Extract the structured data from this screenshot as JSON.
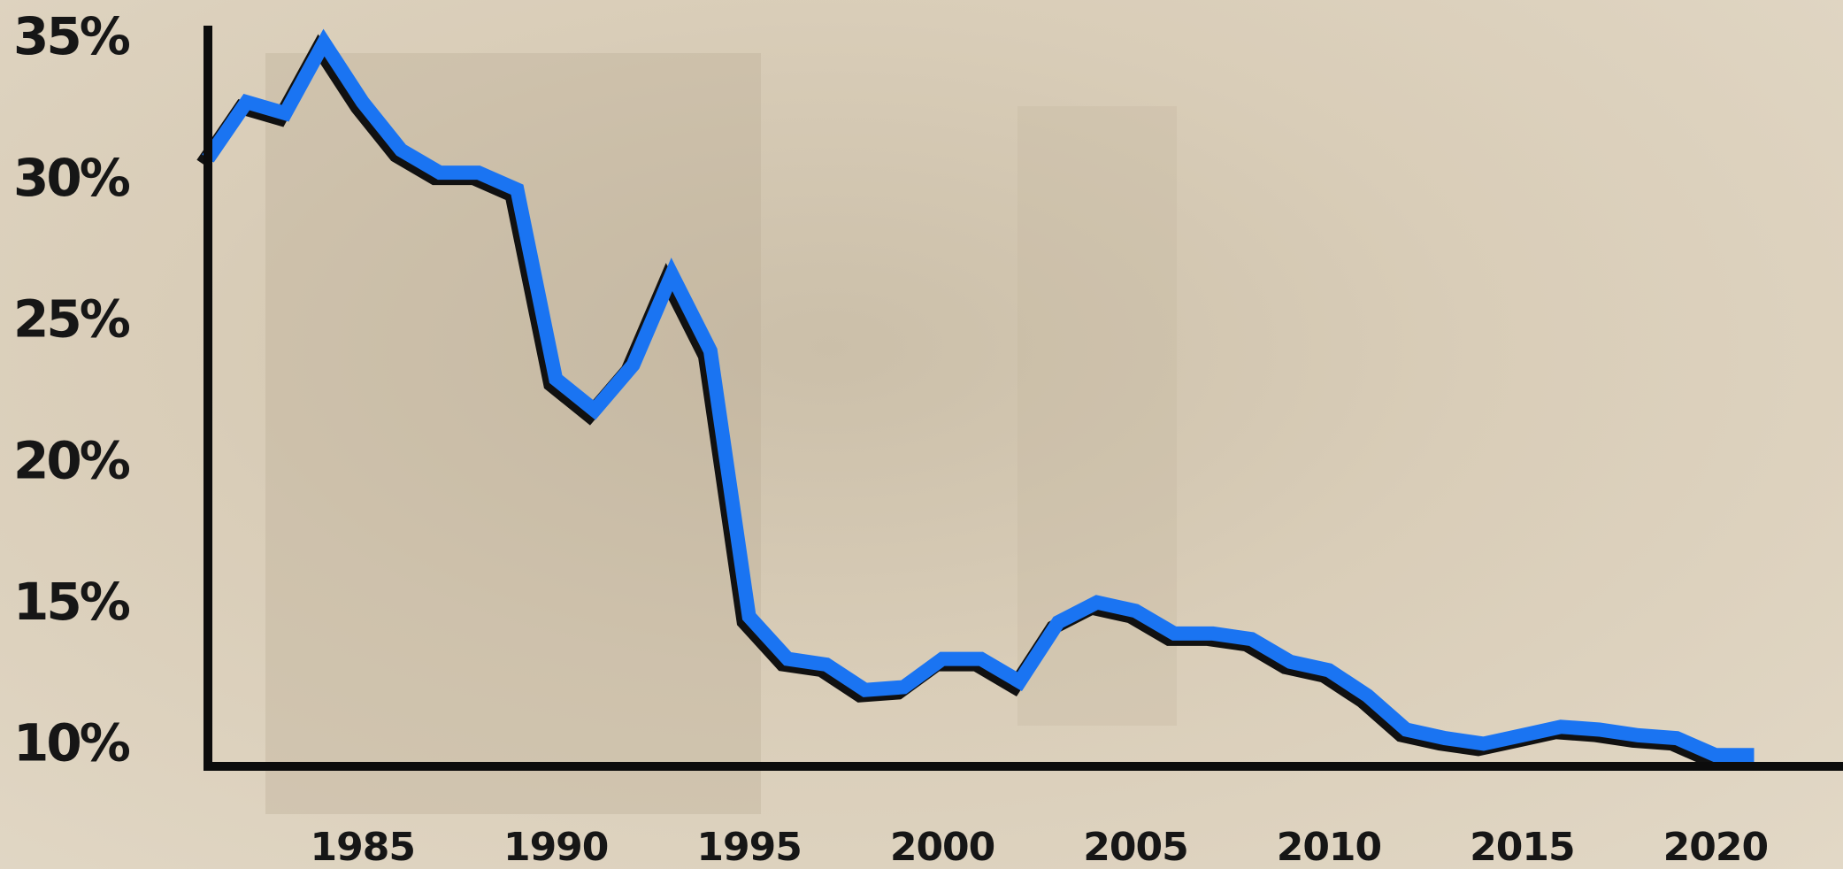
{
  "chart_data": {
    "type": "line",
    "x": [
      1981,
      1982,
      1983,
      1984,
      1985,
      1986,
      1987,
      1988,
      1989,
      1990,
      1991,
      1992,
      1993,
      1994,
      1995,
      1996,
      1997,
      1998,
      1999,
      2000,
      2001,
      2002,
      2003,
      2004,
      2005,
      2006,
      2007,
      2008,
      2009,
      2010,
      2011,
      2012,
      2013,
      2014,
      2015,
      2016,
      2017,
      2018,
      2019,
      2020,
      2021
    ],
    "series": [
      {
        "color": "#1a74f2",
        "values": [
          30.8,
          32.8,
          32.4,
          34.9,
          32.8,
          31.1,
          30.3,
          30.3,
          29.7,
          23.0,
          21.9,
          23.5,
          26.7,
          24.0,
          14.6,
          13.1,
          12.9,
          12.0,
          12.1,
          13.1,
          13.1,
          12.3,
          14.4,
          15.1,
          14.8,
          14.0,
          14.0,
          13.8,
          13.0,
          12.7,
          11.8,
          10.6,
          10.3,
          10.1,
          10.4,
          10.7,
          10.6,
          10.4,
          10.3,
          9.7,
          9.7
        ]
      }
    ],
    "xlim": [
      1981,
      2023.3
    ],
    "xticks": [
      1985,
      1990,
      1995,
      2000,
      2005,
      2010,
      2015,
      2020
    ],
    "ylim": [
      9.3,
      35.5
    ],
    "yticks": [
      {
        "value": 10,
        "label": "10%"
      },
      {
        "value": 15,
        "label": "15%"
      },
      {
        "value": 20,
        "label": "20%"
      },
      {
        "value": 25,
        "label": "25%"
      },
      {
        "value": 30,
        "label": "30%"
      },
      {
        "value": 35,
        "label": "35%"
      }
    ],
    "grid": false
  }
}
